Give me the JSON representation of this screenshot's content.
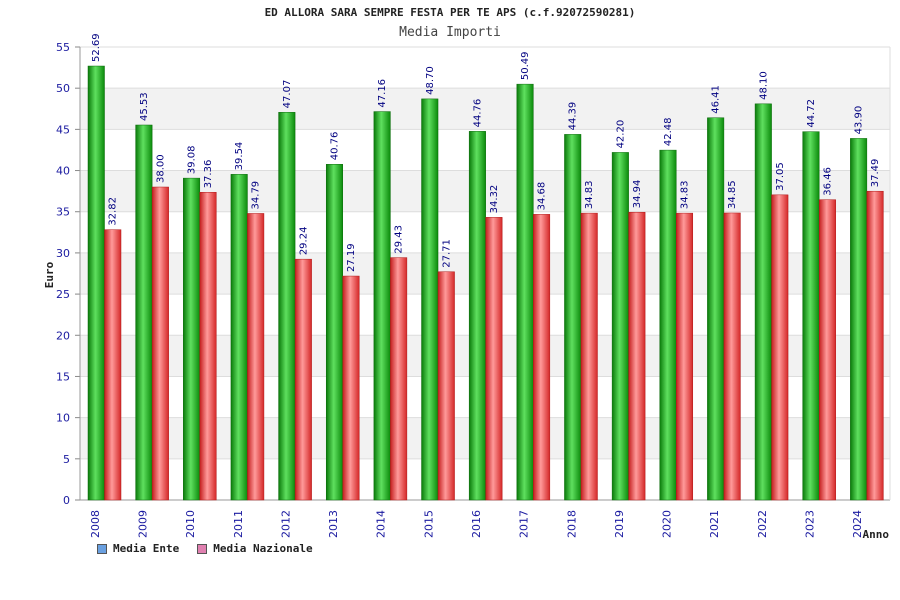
{
  "header": {
    "title": "ED ALLORA SARA SEMPRE FESTA PER TE APS (c.f.92072590281)",
    "subtitle": "Media Importi"
  },
  "legend": {
    "items": [
      {
        "label": "Media Ente",
        "color": "#6aa0e0"
      },
      {
        "label": "Media Nazionale",
        "color": "#e080b0"
      }
    ]
  },
  "chart_data": {
    "type": "bar",
    "title": "ED ALLORA SARA SEMPRE FESTA PER TE APS (c.f.92072590281)",
    "subtitle": "Media Importi",
    "xlabel": "Anno",
    "ylabel": "Euro",
    "ylim": [
      0,
      55
    ],
    "yticks": [
      0,
      5,
      10,
      15,
      20,
      25,
      30,
      35,
      40,
      45,
      50,
      55
    ],
    "grid": true,
    "categories": [
      "2008",
      "2009",
      "2010",
      "2011",
      "2012",
      "2013",
      "2014",
      "2015",
      "2016",
      "2017",
      "2018",
      "2019",
      "2020",
      "2021",
      "2022",
      "2023",
      "2024"
    ],
    "series": [
      {
        "name": "Media Ente",
        "color": "#1aa01a",
        "values": [
          52.69,
          45.53,
          39.08,
          39.54,
          47.07,
          40.76,
          47.16,
          48.7,
          44.76,
          50.49,
          44.39,
          42.2,
          42.48,
          46.41,
          48.1,
          44.72,
          43.9
        ]
      },
      {
        "name": "Media Nazionale",
        "color": "#e03030",
        "values": [
          32.82,
          38.0,
          37.36,
          34.79,
          29.24,
          27.19,
          29.43,
          27.71,
          34.32,
          34.68,
          34.83,
          34.94,
          34.83,
          34.85,
          37.05,
          36.46,
          37.49
        ]
      }
    ]
  }
}
